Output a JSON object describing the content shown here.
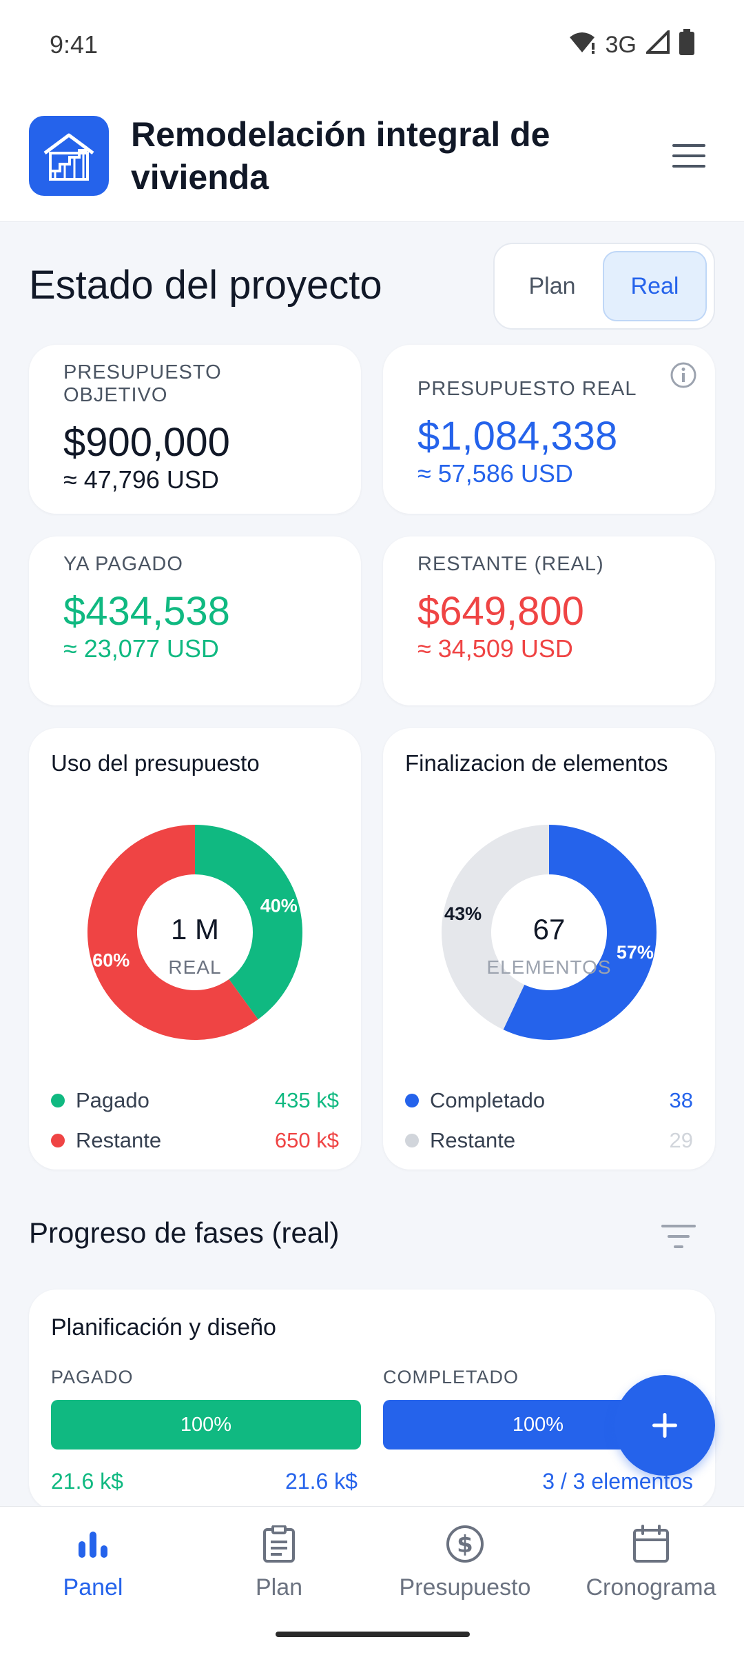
{
  "status_bar": {
    "time": "9:41",
    "network": "3G"
  },
  "header": {
    "title": "Remodelación integral de vivienda"
  },
  "overview": {
    "title": "Estado del proyecto",
    "toggle": {
      "plan_label": "Plan",
      "real_label": "Real",
      "selected": "Real"
    }
  },
  "stats": {
    "target_budget": {
      "label": "PRESUPUESTO OBJETIVO",
      "value": "$900,000",
      "usd": "≈ 47,796 USD"
    },
    "real_budget": {
      "label": "PRESUPUESTO REAL",
      "value": "$1,084,338",
      "usd": "≈ 57,586 USD"
    },
    "paid": {
      "label": "YA PAGADO",
      "value": "$434,538",
      "usd": "≈ 23,077 USD"
    },
    "remaining": {
      "label": "RESTANTE (REAL)",
      "value": "$649,800",
      "usd": "≈ 34,509 USD"
    }
  },
  "colors": {
    "primary": "#2563EB",
    "green": "#10B981",
    "red": "#EF4444",
    "grey_segment": "#E5E7EB"
  },
  "budget_chart": {
    "title": "Uso del presupuesto",
    "center_value": "1 M",
    "center_label": "REAL",
    "legend": [
      {
        "label": "Pagado",
        "value": "435 k$"
      },
      {
        "label": "Restante",
        "value": "650 k$"
      }
    ]
  },
  "elements_chart": {
    "title": "Finalizacion de elementos",
    "center_value": "67",
    "center_label": "ELEMENTOS",
    "legend": [
      {
        "label": "Completado",
        "value": "38"
      },
      {
        "label": "Restante",
        "value": "29"
      }
    ]
  },
  "chart_data": [
    {
      "type": "pie",
      "title": "Uso del presupuesto",
      "categories": [
        "Pagado",
        "Restante"
      ],
      "values": [
        40,
        60
      ],
      "labels": [
        "40%",
        "60%"
      ]
    },
    {
      "type": "pie",
      "title": "Finalizacion de elementos",
      "categories": [
        "Completado",
        "Restante"
      ],
      "values": [
        57,
        43
      ],
      "labels": [
        "57%",
        "43%"
      ]
    }
  ],
  "phases": {
    "title": "Progreso de fases (real)",
    "items": [
      {
        "name": "Planificación y diseño",
        "paid_label": "PAGADO",
        "paid_percent": "100%",
        "paid_fraction": 1.0,
        "paid_amount": "21.6 k$",
        "paid_total": "21.6 k$",
        "completed_label": "COMPLETADO",
        "completed_percent": "100%",
        "completed_fraction": 1.0,
        "completed_text": "3 / 3 elementos"
      }
    ]
  },
  "fab": {
    "icon": "plus-icon"
  },
  "bottom_nav": {
    "items": [
      {
        "label": "Panel",
        "icon": "bar-chart-icon",
        "active": true
      },
      {
        "label": "Plan",
        "icon": "clipboard-icon",
        "active": false
      },
      {
        "label": "Presupuesto",
        "icon": "dollar-circle-icon",
        "active": false
      },
      {
        "label": "Cronograma",
        "icon": "calendar-icon",
        "active": false
      }
    ]
  }
}
